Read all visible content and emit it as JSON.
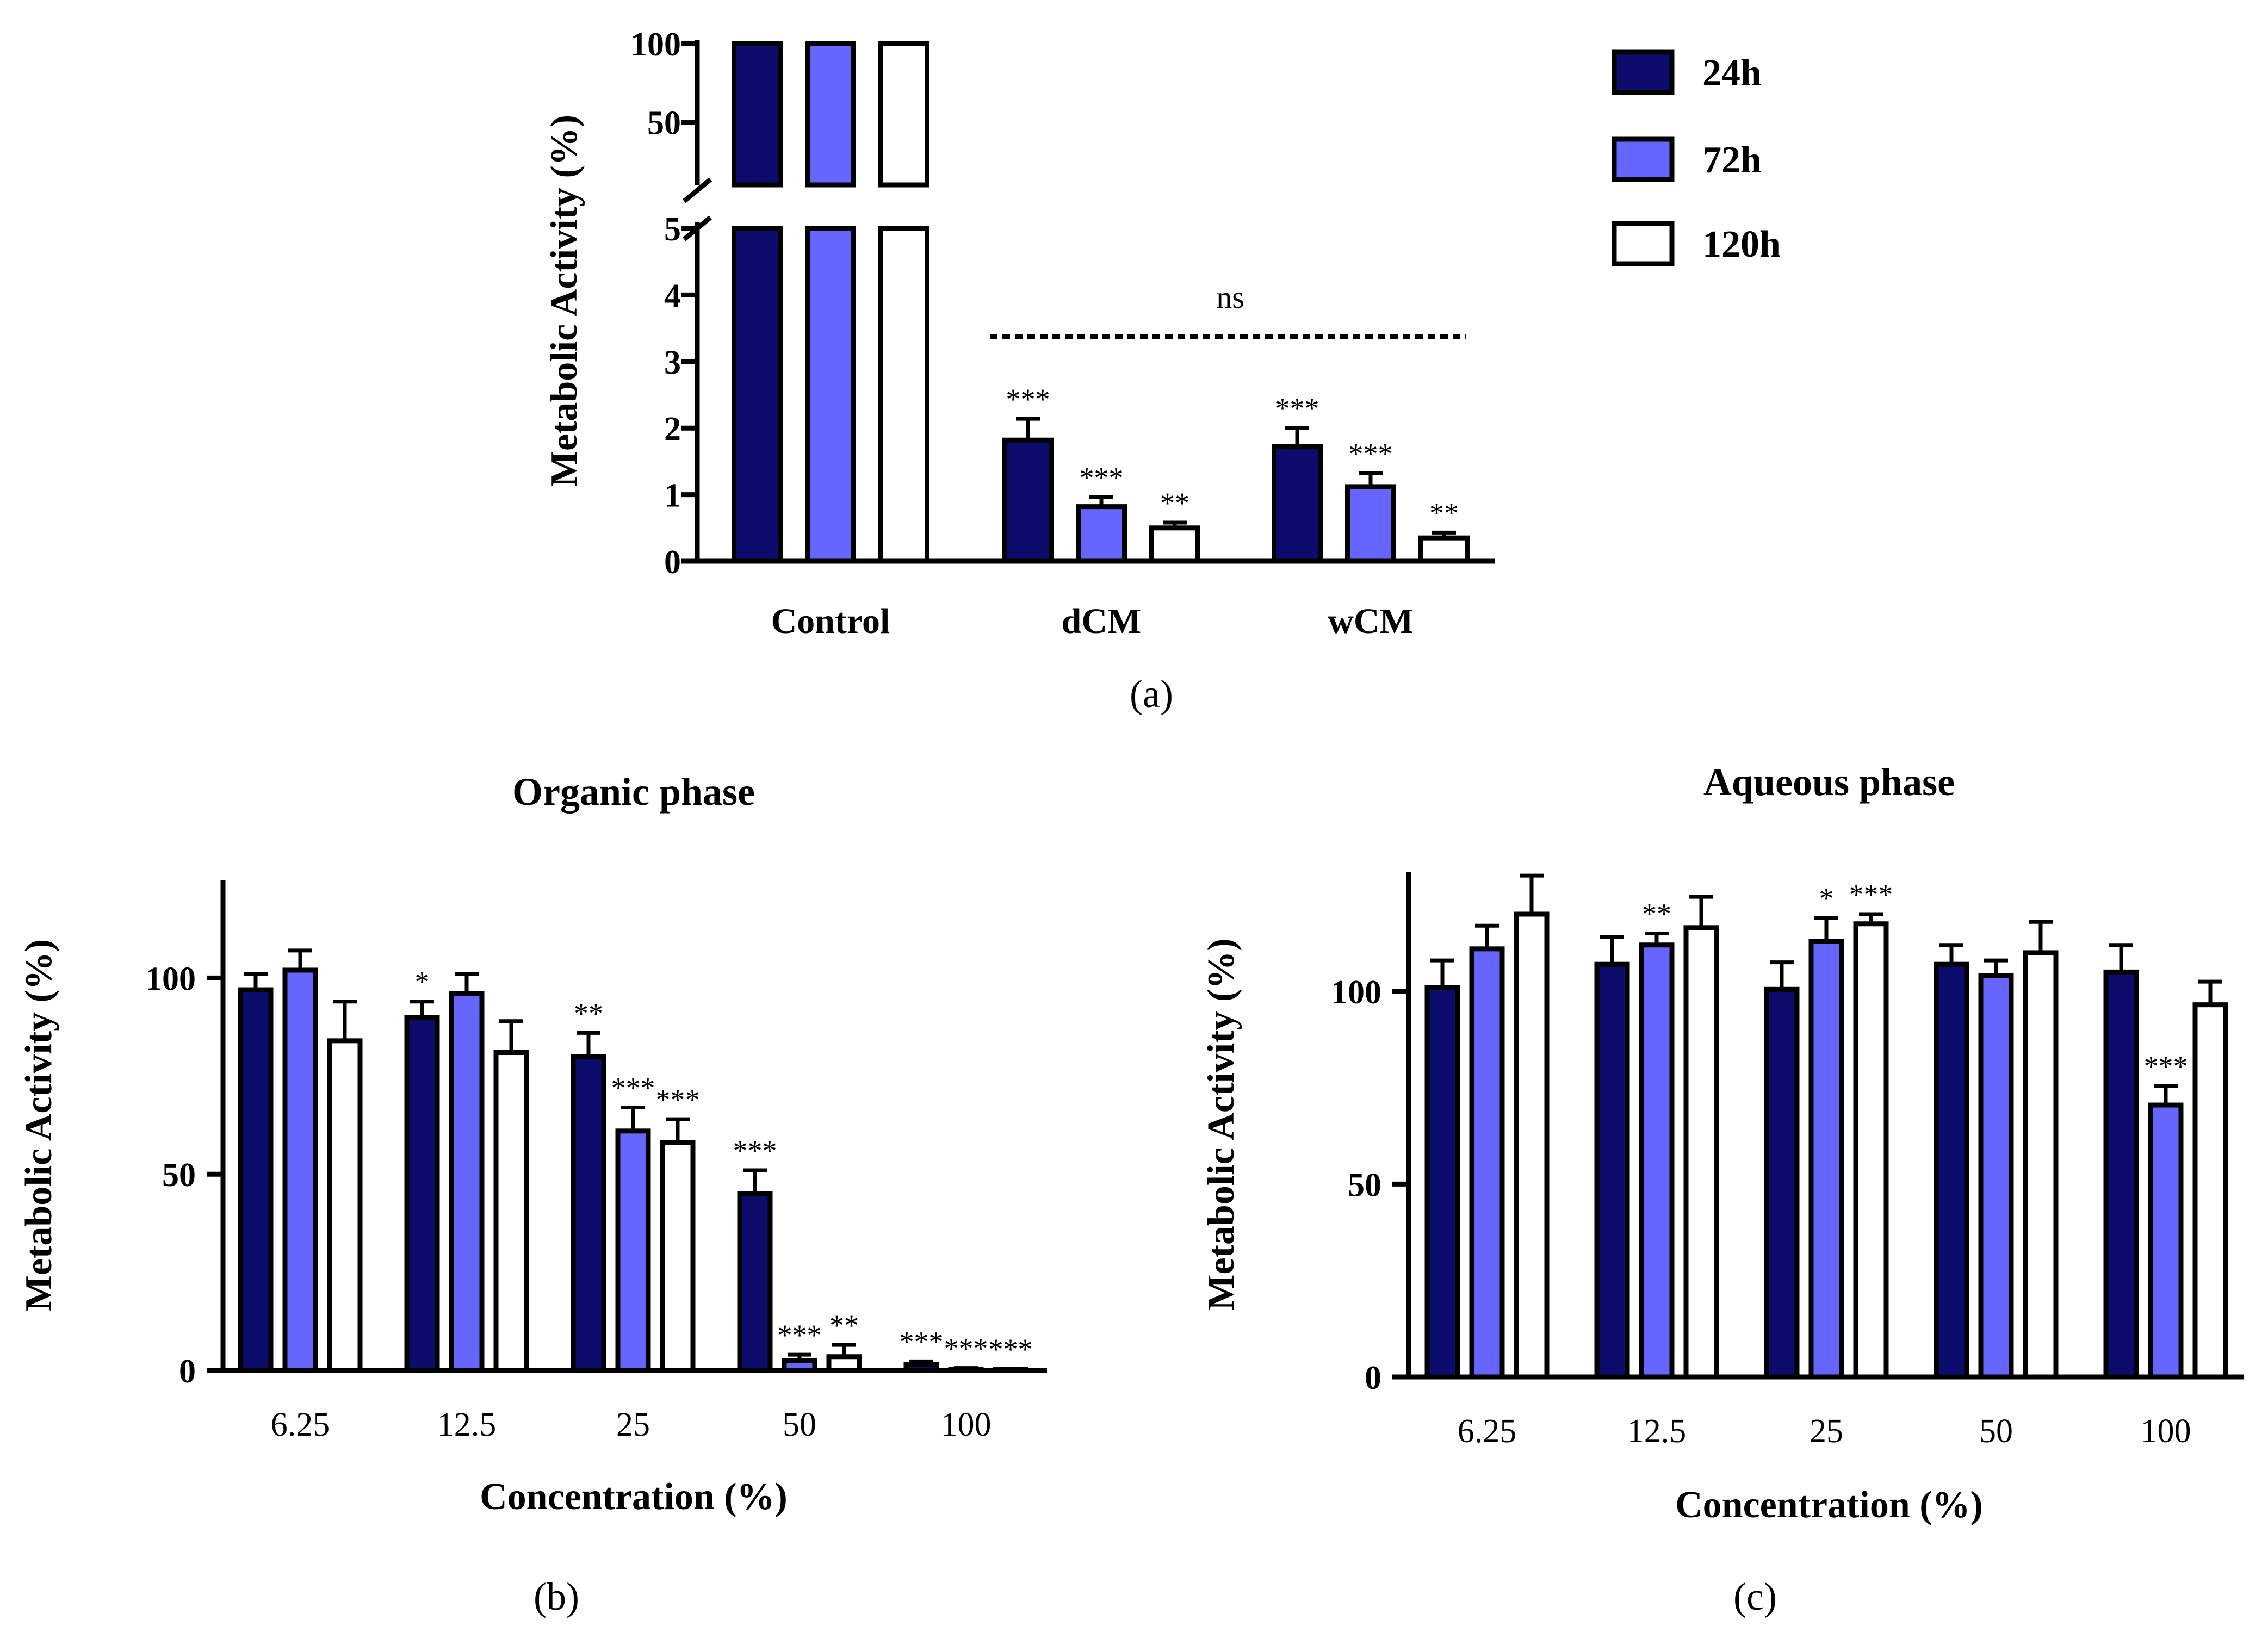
{
  "figure": {
    "panel_labels": [
      "(a)",
      "(b)",
      "(c)"
    ]
  },
  "legend": [
    {
      "name": "24h",
      "color": "#0c0c6c"
    },
    {
      "name": "72h",
      "color": "#6666ff"
    },
    {
      "name": "120h",
      "color": "#ffffff"
    }
  ],
  "chart_data": [
    {
      "type": "bar",
      "panel": "(a)",
      "title": "",
      "xlabel": "",
      "ylabel": "Metabolic Activity (%)",
      "broken_axis": {
        "lower_ylim": [
          0,
          5
        ],
        "upper_ylim": [
          10,
          100
        ],
        "lower_ticks": [
          0,
          1,
          2,
          3,
          4,
          5
        ],
        "upper_ticks": [
          50,
          100
        ]
      },
      "categories": [
        "Control",
        "dCM",
        "wCM"
      ],
      "series": [
        {
          "name": "24h",
          "values": [
            100,
            1.82,
            1.72
          ],
          "errors": [
            0,
            0.32,
            0.28
          ],
          "significance": [
            "",
            "***",
            "***"
          ]
        },
        {
          "name": "72h",
          "values": [
            100,
            0.82,
            1.12
          ],
          "errors": [
            0,
            0.14,
            0.2
          ],
          "significance": [
            "",
            "***",
            "***"
          ]
        },
        {
          "name": "120h",
          "values": [
            100,
            0.5,
            0.35
          ],
          "errors": [
            0,
            0.08,
            0.08
          ],
          "significance": [
            "",
            "**",
            "**"
          ]
        }
      ],
      "comparison": {
        "from": "dCM",
        "to": "wCM",
        "label": "ns"
      }
    },
    {
      "type": "bar",
      "panel": "(b)",
      "title": "Organic phase",
      "xlabel": "Concentration (%)",
      "ylabel": "Metabolic Activity (%)",
      "ylim": [
        0,
        125
      ],
      "yticks": [
        0,
        50,
        100
      ],
      "categories": [
        "6.25",
        "12.5",
        "25",
        "50",
        "100"
      ],
      "series": [
        {
          "name": "24h",
          "values": [
            97,
            90,
            80,
            45,
            1.5
          ],
          "errors": [
            4,
            4,
            6,
            6,
            0.8
          ],
          "significance": [
            "",
            "*",
            "**",
            "***",
            "***"
          ]
        },
        {
          "name": "72h",
          "values": [
            102,
            96,
            61,
            2.5,
            0.3
          ],
          "errors": [
            5,
            5,
            6,
            1.5,
            0.3
          ],
          "significance": [
            "",
            "",
            "***",
            "***",
            "***"
          ]
        },
        {
          "name": "120h",
          "values": [
            84,
            81,
            58,
            3.5,
            0.2
          ],
          "errors": [
            10,
            8,
            6,
            3,
            0.2
          ],
          "significance": [
            "",
            "",
            "***",
            "**",
            "***"
          ]
        }
      ]
    },
    {
      "type": "bar",
      "panel": "(c)",
      "title": "Aqueous phase",
      "xlabel": "Concentration (%)",
      "ylabel": "Metabolic Activity (%)",
      "ylim": [
        0,
        131
      ],
      "yticks": [
        0,
        50,
        100
      ],
      "categories": [
        "6.25",
        "12.5",
        "25",
        "50",
        "100"
      ],
      "series": [
        {
          "name": "24h",
          "values": [
            101,
            107,
            100.5,
            107,
            105
          ],
          "errors": [
            7,
            7,
            7,
            5,
            7
          ],
          "significance": [
            "",
            "",
            "",
            "",
            ""
          ]
        },
        {
          "name": "72h",
          "values": [
            111,
            112,
            113,
            104,
            70.5
          ],
          "errors": [
            6,
            3,
            6,
            4,
            5
          ],
          "significance": [
            "",
            "**",
            "*",
            "",
            "***"
          ]
        },
        {
          "name": "120h",
          "values": [
            120,
            116.5,
            117.5,
            110,
            96.5
          ],
          "errors": [
            10,
            8,
            2.5,
            8,
            6
          ],
          "significance": [
            "",
            "",
            "***",
            "",
            ""
          ]
        }
      ]
    }
  ]
}
